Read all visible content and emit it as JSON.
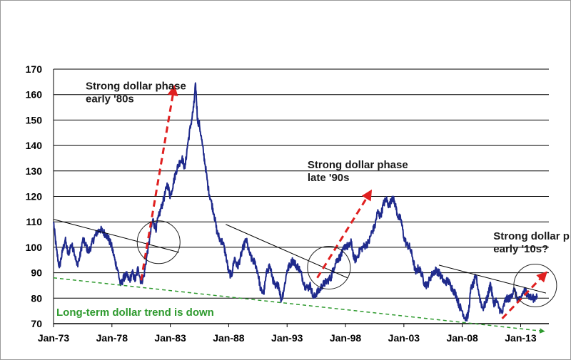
{
  "chart_data": {
    "type": "line",
    "title": "",
    "xlabel": "",
    "ylabel": "",
    "ylim": [
      70,
      170
    ],
    "xlim": [
      "Jan-73",
      "Jun-15"
    ],
    "grid": "horizontal",
    "y_ticks": [
      70,
      80,
      90,
      100,
      110,
      120,
      130,
      140,
      150,
      160,
      170
    ],
    "x_ticks": [
      "Jan-73",
      "Jan-78",
      "Jan-83",
      "Jan-88",
      "Jan-93",
      "Jan-98",
      "Jan-03",
      "Jan-08",
      "Jan-13"
    ],
    "series": [
      {
        "color": "#1f2a8c",
        "points": [
          [
            "1973-01",
            110
          ],
          [
            "1973-04",
            99
          ],
          [
            "1973-07",
            92
          ],
          [
            "1973-10",
            98
          ],
          [
            "1974-01",
            103
          ],
          [
            "1974-04",
            97
          ],
          [
            "1974-07",
            101
          ],
          [
            "1974-10",
            99
          ],
          [
            "1975-01",
            93
          ],
          [
            "1975-04",
            96
          ],
          [
            "1975-07",
            103
          ],
          [
            "1975-10",
            101
          ],
          [
            "1976-01",
            98
          ],
          [
            "1976-04",
            101
          ],
          [
            "1976-07",
            104
          ],
          [
            "1976-10",
            106
          ],
          [
            "1977-01",
            107
          ],
          [
            "1977-04",
            106
          ],
          [
            "1977-07",
            105
          ],
          [
            "1977-10",
            103
          ],
          [
            "1978-01",
            100
          ],
          [
            "1978-04",
            95
          ],
          [
            "1978-07",
            91
          ],
          [
            "1978-10",
            85
          ],
          [
            "1979-01",
            88
          ],
          [
            "1979-04",
            89
          ],
          [
            "1979-07",
            87
          ],
          [
            "1979-10",
            90
          ],
          [
            "1980-01",
            87
          ],
          [
            "1980-04",
            92
          ],
          [
            "1980-07",
            86
          ],
          [
            "1980-10",
            89
          ],
          [
            "1981-01",
            97
          ],
          [
            "1981-04",
            104
          ],
          [
            "1981-07",
            111
          ],
          [
            "1981-10",
            107
          ],
          [
            "1982-01",
            112
          ],
          [
            "1982-04",
            116
          ],
          [
            "1982-07",
            120
          ],
          [
            "1982-10",
            125
          ],
          [
            "1983-01",
            120
          ],
          [
            "1983-04",
            125
          ],
          [
            "1983-07",
            130
          ],
          [
            "1983-10",
            133
          ],
          [
            "1984-01",
            135
          ],
          [
            "1984-04",
            131
          ],
          [
            "1984-07",
            141
          ],
          [
            "1984-10",
            148
          ],
          [
            "1985-01",
            155
          ],
          [
            "1985-03",
            164
          ],
          [
            "1985-05",
            150
          ],
          [
            "1985-07",
            148
          ],
          [
            "1985-10",
            140
          ],
          [
            "1986-01",
            132
          ],
          [
            "1986-04",
            123
          ],
          [
            "1986-07",
            118
          ],
          [
            "1986-10",
            113
          ],
          [
            "1987-01",
            106
          ],
          [
            "1987-04",
            103
          ],
          [
            "1987-07",
            102
          ],
          [
            "1987-10",
            97
          ],
          [
            "1988-01",
            90
          ],
          [
            "1988-04",
            89
          ],
          [
            "1988-07",
            96
          ],
          [
            "1988-10",
            92
          ],
          [
            "1989-01",
            96
          ],
          [
            "1989-04",
            100
          ],
          [
            "1989-07",
            103
          ],
          [
            "1989-10",
            98
          ],
          [
            "1990-01",
            95
          ],
          [
            "1990-04",
            94
          ],
          [
            "1990-07",
            90
          ],
          [
            "1990-10",
            83
          ],
          [
            "1991-01",
            82
          ],
          [
            "1991-04",
            90
          ],
          [
            "1991-07",
            93
          ],
          [
            "1991-10",
            88
          ],
          [
            "1992-01",
            84
          ],
          [
            "1992-04",
            86
          ],
          [
            "1992-07",
            79
          ],
          [
            "1992-10",
            84
          ],
          [
            "1993-01",
            91
          ],
          [
            "1993-04",
            93
          ],
          [
            "1993-07",
            95
          ],
          [
            "1993-10",
            93
          ],
          [
            "1994-01",
            92
          ],
          [
            "1994-04",
            89
          ],
          [
            "1994-07",
            85
          ],
          [
            "1994-10",
            84
          ],
          [
            "1995-01",
            85
          ],
          [
            "1995-04",
            80
          ],
          [
            "1995-07",
            82
          ],
          [
            "1995-10",
            83
          ],
          [
            "1996-01",
            85
          ],
          [
            "1996-04",
            86
          ],
          [
            "1996-07",
            87
          ],
          [
            "1996-10",
            88
          ],
          [
            "1997-01",
            92
          ],
          [
            "1997-04",
            95
          ],
          [
            "1997-07",
            96
          ],
          [
            "1997-10",
            98
          ],
          [
            "1998-01",
            101
          ],
          [
            "1998-04",
            100
          ],
          [
            "1998-07",
            102
          ],
          [
            "1998-10",
            95
          ],
          [
            "1999-01",
            96
          ],
          [
            "1999-04",
            99
          ],
          [
            "1999-07",
            100
          ],
          [
            "1999-10",
            101
          ],
          [
            "2000-01",
            102
          ],
          [
            "2000-04",
            106
          ],
          [
            "2000-07",
            108
          ],
          [
            "2000-10",
            114
          ],
          [
            "2001-01",
            112
          ],
          [
            "2001-04",
            117
          ],
          [
            "2001-07",
            119
          ],
          [
            "2001-10",
            116
          ],
          [
            "2002-01",
            120
          ],
          [
            "2002-04",
            117
          ],
          [
            "2002-07",
            112
          ],
          [
            "2002-10",
            111
          ],
          [
            "2003-01",
            104
          ],
          [
            "2003-04",
            101
          ],
          [
            "2003-07",
            100
          ],
          [
            "2003-10",
            96
          ],
          [
            "2004-01",
            90
          ],
          [
            "2004-04",
            92
          ],
          [
            "2004-07",
            90
          ],
          [
            "2004-10",
            86
          ],
          [
            "2005-01",
            85
          ],
          [
            "2005-04",
            88
          ],
          [
            "2005-07",
            90
          ],
          [
            "2005-10",
            91
          ],
          [
            "2006-01",
            90
          ],
          [
            "2006-04",
            88
          ],
          [
            "2006-07",
            86
          ],
          [
            "2006-10",
            87
          ],
          [
            "2007-01",
            85
          ],
          [
            "2007-04",
            83
          ],
          [
            "2007-07",
            81
          ],
          [
            "2007-10",
            77
          ],
          [
            "2008-01",
            75
          ],
          [
            "2008-04",
            72
          ],
          [
            "2008-07",
            73
          ],
          [
            "2008-10",
            84
          ],
          [
            "2009-01",
            86
          ],
          [
            "2009-03",
            89
          ],
          [
            "2009-07",
            80
          ],
          [
            "2009-10",
            76
          ],
          [
            "2010-01",
            78
          ],
          [
            "2010-04",
            82
          ],
          [
            "2010-06",
            86
          ],
          [
            "2010-09",
            78
          ],
          [
            "2010-12",
            79
          ],
          [
            "2011-03",
            76
          ],
          [
            "2011-06",
            74
          ],
          [
            "2011-09",
            79
          ],
          [
            "2011-12",
            80
          ],
          [
            "2012-03",
            80
          ],
          [
            "2012-06",
            84
          ],
          [
            "2012-09",
            80
          ],
          [
            "2012-12",
            79
          ],
          [
            "2013-03",
            82
          ],
          [
            "2013-06",
            83
          ],
          [
            "2013-09",
            81
          ],
          [
            "2013-12",
            80
          ],
          [
            "2014-03",
            80
          ],
          [
            "2014-06",
            81
          ]
        ]
      }
    ],
    "trendlines": [
      {
        "name": "resistance-1970s",
        "style": "solid",
        "color": "#000000",
        "from": [
          "1973-01",
          111
        ],
        "to": [
          "1983-10",
          98
        ]
      },
      {
        "name": "resistance-1990s",
        "style": "solid",
        "color": "#000000",
        "from": [
          "1987-10",
          109
        ],
        "to": [
          "1998-03",
          88
        ]
      },
      {
        "name": "resistance-2000s",
        "style": "solid",
        "color": "#000000",
        "from": [
          "2006-01",
          93
        ],
        "to": [
          "2015-03",
          82
        ]
      },
      {
        "name": "long-term-down",
        "style": "dashed",
        "color": "#2e9a2e",
        "from": [
          "1973-01",
          88
        ],
        "to": [
          "2015-01",
          67
        ]
      }
    ],
    "arrows": [
      {
        "name": "phase-80s-arrow",
        "color": "#e02020",
        "from": [
          "1980-07",
          87
        ],
        "to": [
          "1983-05",
          163
        ]
      },
      {
        "name": "phase-90s-arrow",
        "color": "#e02020",
        "from": [
          "1995-08",
          88
        ],
        "to": [
          "2000-03",
          122
        ]
      },
      {
        "name": "phase-10s-arrow",
        "color": "#e02020",
        "from": [
          "2011-06",
          72
        ],
        "to": [
          "2015-03",
          90
        ]
      }
    ],
    "circles": [
      {
        "name": "breakout-circle-1981",
        "center": [
          "1982-01",
          102
        ]
      },
      {
        "name": "breakout-circle-1996",
        "center": [
          "1996-08",
          92
        ]
      },
      {
        "name": "breakout-circle-2014",
        "center": [
          "2014-04",
          85
        ]
      }
    ],
    "annotations": [
      {
        "lines": [
          "Strong  dollar phase",
          "early '80s"
        ],
        "anchor": [
          "1975-10",
          162
        ]
      },
      {
        "lines": [
          "Strong  dollar phase",
          "late '90s"
        ],
        "anchor": [
          "1994-10",
          131
        ]
      },
      {
        "lines": [
          "Strong  dollar phase",
          "early '10s?"
        ],
        "anchor": [
          "2010-09",
          103
        ]
      }
    ],
    "footnote": "Long-term dollar trend is down"
  }
}
